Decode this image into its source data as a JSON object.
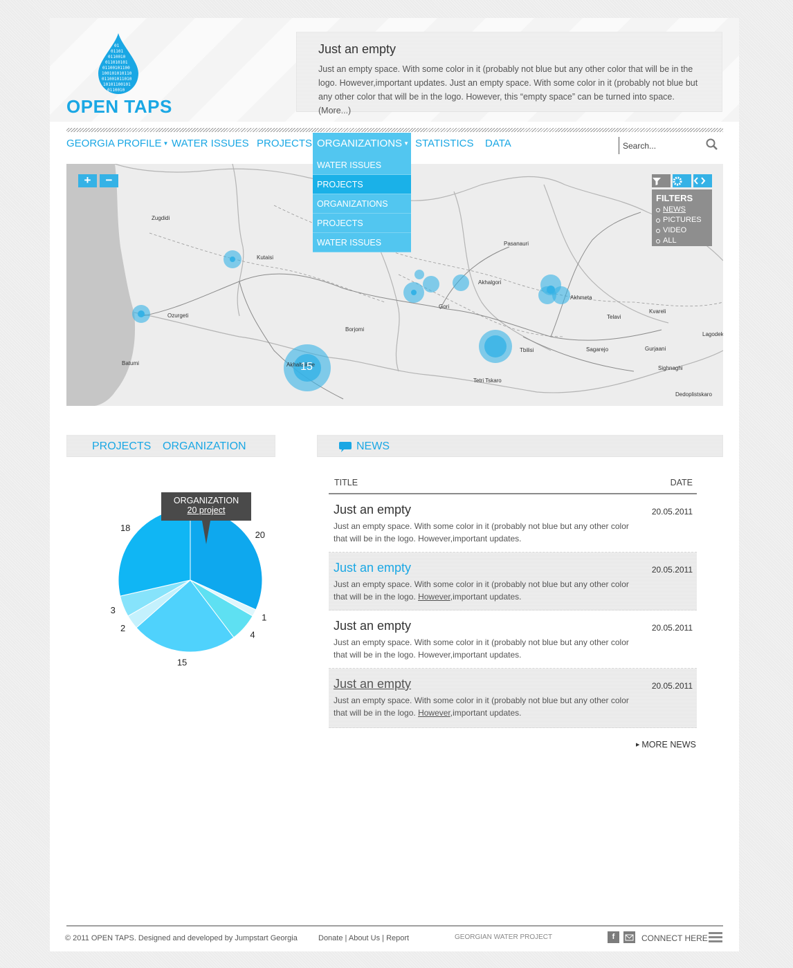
{
  "logo": {
    "text": "OPEN TAPS"
  },
  "intro": {
    "title": "Just an empty",
    "text": "Just an empty space. With some color in it (probably not blue but any other color that will be in the logo. However,important updates. Just an empty space. With some color in it (probably not blue but any other color that will be in the logo. However, this “empty space” can be turned into space. (More...)"
  },
  "nav": {
    "items": [
      "GEORGIA PROFILE",
      "WATER ISSUES",
      "PROJECTS",
      "ORGANIZATIONS",
      "STATISTICS",
      "DATA"
    ],
    "active": "ORGANIZATIONS",
    "search_placeholder": "Search..."
  },
  "dropdown": {
    "items": [
      "WATER ISSUES",
      "PROJECTS",
      "ORGANIZATIONS",
      "PROJECTS",
      "WATER ISSUES"
    ],
    "highlighted_index": 1
  },
  "map": {
    "zoom_in": "+",
    "zoom_out": "−",
    "tools": [
      "filter-icon",
      "gear-icon",
      "embed-icon"
    ],
    "filters": {
      "title": "FILTERS",
      "options": [
        "NEWS",
        "PICTURES",
        "VIDEO",
        "ALL"
      ],
      "selected": "NEWS"
    },
    "places": [
      "Zugdidi",
      "Kutaisi",
      "Ozurgeti",
      "Batumi",
      "Borjomi",
      "Akhaltsikhe",
      "Gori",
      "Akhalgori",
      "Pasanauri",
      "Akhmeta",
      "Telavi",
      "Kvareli",
      "Lagodekhi",
      "Gurjaani",
      "Tbilisi",
      "Sagarejo",
      "Sighnaghi",
      "Tetri Tskaro",
      "Dedoplistskaro"
    ],
    "cluster_count": "15",
    "marker_color": "#35b2e6"
  },
  "left_section": {
    "tabs": [
      "PROJECTS",
      "ORGANIZATION"
    ]
  },
  "news_section": {
    "title": "NEWS"
  },
  "chart_data": {
    "type": "pie",
    "values": [
      20,
      1,
      4,
      15,
      2,
      3,
      18
    ],
    "labels": [
      "20",
      "1",
      "4",
      "15",
      "2",
      "3",
      "18"
    ],
    "colors": [
      "#0ea8ee",
      "#dff6fc",
      "#5ee0f2",
      "#4fd2fc",
      "#c4f1fd",
      "#86e3fb",
      "#10b6f4"
    ],
    "tooltip": {
      "title": "ORGANIZATION",
      "link": "20 project"
    }
  },
  "news": {
    "columns": [
      "TITLE",
      "DATE"
    ],
    "rows": [
      {
        "title": "Just an empty",
        "desc_a": "Just an empty space. With some color in it (probably not blue but any other color that will be in the logo. ",
        "desc_u": "However",
        "desc_b": ",important updates.",
        "date": "20.05.2011"
      },
      {
        "title": "Just an empty",
        "desc_a": "Just an empty space. With some color in it (probably not blue but any other color that will be in the logo. ",
        "desc_u": "However",
        "desc_b": ",important updates.",
        "date": "20.05.2011"
      },
      {
        "title": "Just an empty",
        "desc_a": "Just an empty space. With some color in it (probably not blue but any other color that will be in the logo. ",
        "desc_u": "However",
        "desc_b": ",important updates.",
        "date": "20.05.2011"
      },
      {
        "title": "Just an empty",
        "desc_a": "Just an empty space. With some color in it (probably not blue but any other color that will be in the logo. ",
        "desc_u": "However",
        "desc_b": ",important updates.",
        "date": "20.05.2011"
      }
    ],
    "more": "MORE NEWS"
  },
  "footer": {
    "copyright": "© 2011 OPEN TAPS.  Designed and developed by Jumpstart Georgia",
    "links": [
      "Donate",
      "About Us",
      "Report"
    ],
    "project": "GEORGIAN WATER PROJECT",
    "social": [
      "facebook-icon",
      "mail-icon"
    ],
    "connect": "CONNECT HERE"
  },
  "colors": {
    "accent": "#1aa7e4",
    "nav_active": "#52c6f0",
    "dropdown_hover": "#1ab1e8"
  }
}
